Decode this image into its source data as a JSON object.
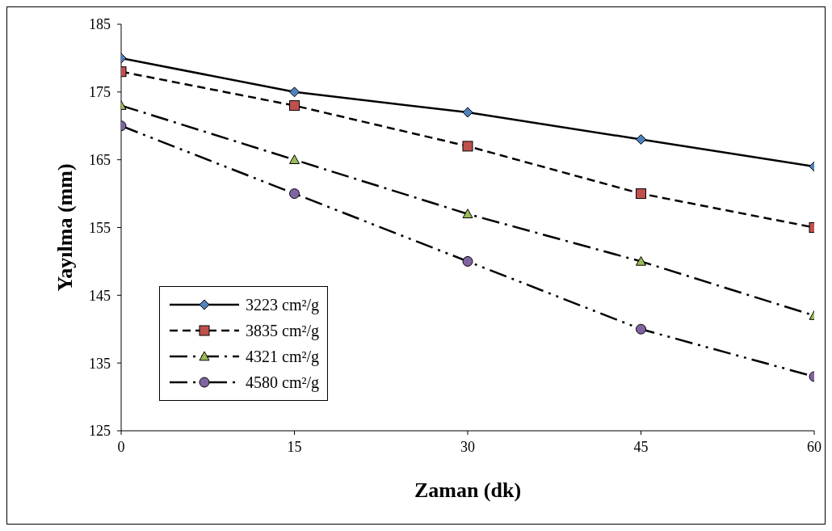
{
  "chart_data": {
    "type": "line",
    "xlabel": "Zaman (dk)",
    "ylabel": "Yayılma (mm)",
    "x": [
      0,
      15,
      30,
      45,
      60
    ],
    "xlim": [
      0,
      60
    ],
    "xticks": [
      0,
      15,
      30,
      45,
      60
    ],
    "ylim": [
      125,
      185
    ],
    "yticks": [
      125,
      135,
      145,
      155,
      165,
      175,
      185
    ],
    "grid": false,
    "legend": "bottom left",
    "series": [
      {
        "name": "3223 cm²/g",
        "color": "#4f81bd",
        "marker": "diamond",
        "line_style": "solid",
        "values": [
          180,
          175,
          172,
          168,
          164
        ]
      },
      {
        "name": "3835 cm²/g",
        "color": "#c0504d",
        "marker": "square",
        "line_style": "dashed",
        "values": [
          178,
          173,
          167,
          160,
          155
        ]
      },
      {
        "name": "4321 cm²/g",
        "color": "#9bbb59",
        "marker": "triangle",
        "line_style": "dashdot",
        "values": [
          173,
          165,
          157,
          150,
          142
        ]
      },
      {
        "name": "4580 cm²/g",
        "color": "#8064a2",
        "marker": "circle",
        "line_style": "dashdotdot",
        "values": [
          170,
          160,
          150,
          140,
          133
        ]
      }
    ]
  }
}
